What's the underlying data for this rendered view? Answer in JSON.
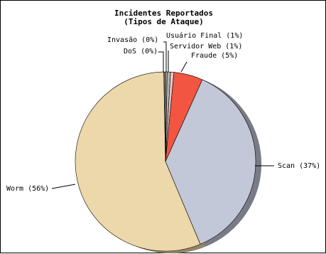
{
  "chart_data": {
    "type": "pie",
    "title": "Incidentes Reportados",
    "subtitle": "(Tipos de Ataque)",
    "slices": [
      {
        "label": "Invasão (0%)",
        "value": 0.3,
        "color": "#c8b4a0"
      },
      {
        "label": "Usuário Final (1%)",
        "value": 0.6,
        "color": "#b0b0b0"
      },
      {
        "label": "Servidor Web (1%)",
        "value": 0.6,
        "color": "#e6c8c8"
      },
      {
        "label": "Fraude (5%)",
        "value": 5.2,
        "color": "#f25542"
      },
      {
        "label": "Scan (37%)",
        "value": 37.0,
        "color": "#c3c8d8"
      },
      {
        "label": "Worm (56%)",
        "value": 56.0,
        "color": "#ecd8aa"
      },
      {
        "label": "DoS (0%)",
        "value": 0.3,
        "color": "#707070"
      }
    ],
    "legend": "none",
    "labels": "outside-with-leader-lines"
  }
}
